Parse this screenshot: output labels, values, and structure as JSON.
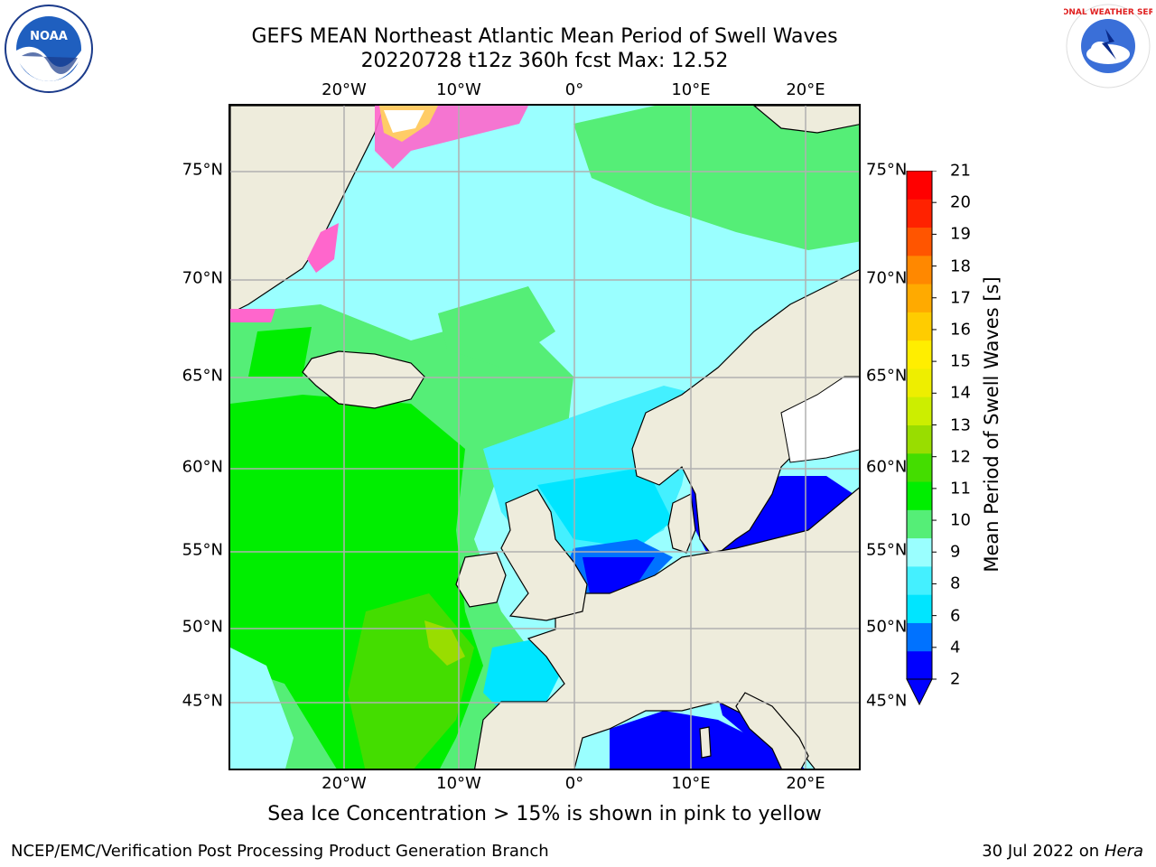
{
  "title": {
    "line1": "GEFS MEAN Northeast Atlantic Mean Period of Swell Waves",
    "line2": "20220728 t12z 360h fcst   Max: 12.52"
  },
  "map": {
    "lon_labels": [
      "20°W",
      "10°W",
      "0°",
      "10°E",
      "20°E"
    ],
    "lat_labels": [
      "75°N",
      "70°N",
      "65°N",
      "60°N",
      "55°N",
      "50°N",
      "45°N"
    ],
    "land_color": "#eeecdc",
    "grid_color": "#b0b0b0"
  },
  "colorbar": {
    "label": "Mean Period of Swell Waves [s]",
    "ticks": [
      "21",
      "20",
      "19",
      "18",
      "17",
      "16",
      "15",
      "14",
      "13",
      "12",
      "11",
      "10",
      "9",
      "8",
      "6",
      "4",
      "2"
    ],
    "colors": [
      "#0000ff",
      "#0072ff",
      "#00e5ff",
      "#44f0ff",
      "#9affff",
      "#55ee77",
      "#00ee00",
      "#44dd00",
      "#99dd00",
      "#ccee00",
      "#eeee00",
      "#ffee00",
      "#ffcc00",
      "#ffaa00",
      "#ff8800",
      "#ff5500",
      "#ff2200",
      "#ff0000"
    ],
    "extend": "min"
  },
  "sea_ice_note": "Sea Ice Concentration > 15% is shown in pink to yellow",
  "footer": {
    "left": "NCEP/EMC/Verification Post Processing Product Generation Branch",
    "right_date": "30 Jul 2022 on ",
    "right_machine": "Hera"
  },
  "logos": {
    "left": "noaa-logo",
    "right": "national-weather-service-logo",
    "right_text": "NATIONAL WEATHER SERVICE"
  }
}
